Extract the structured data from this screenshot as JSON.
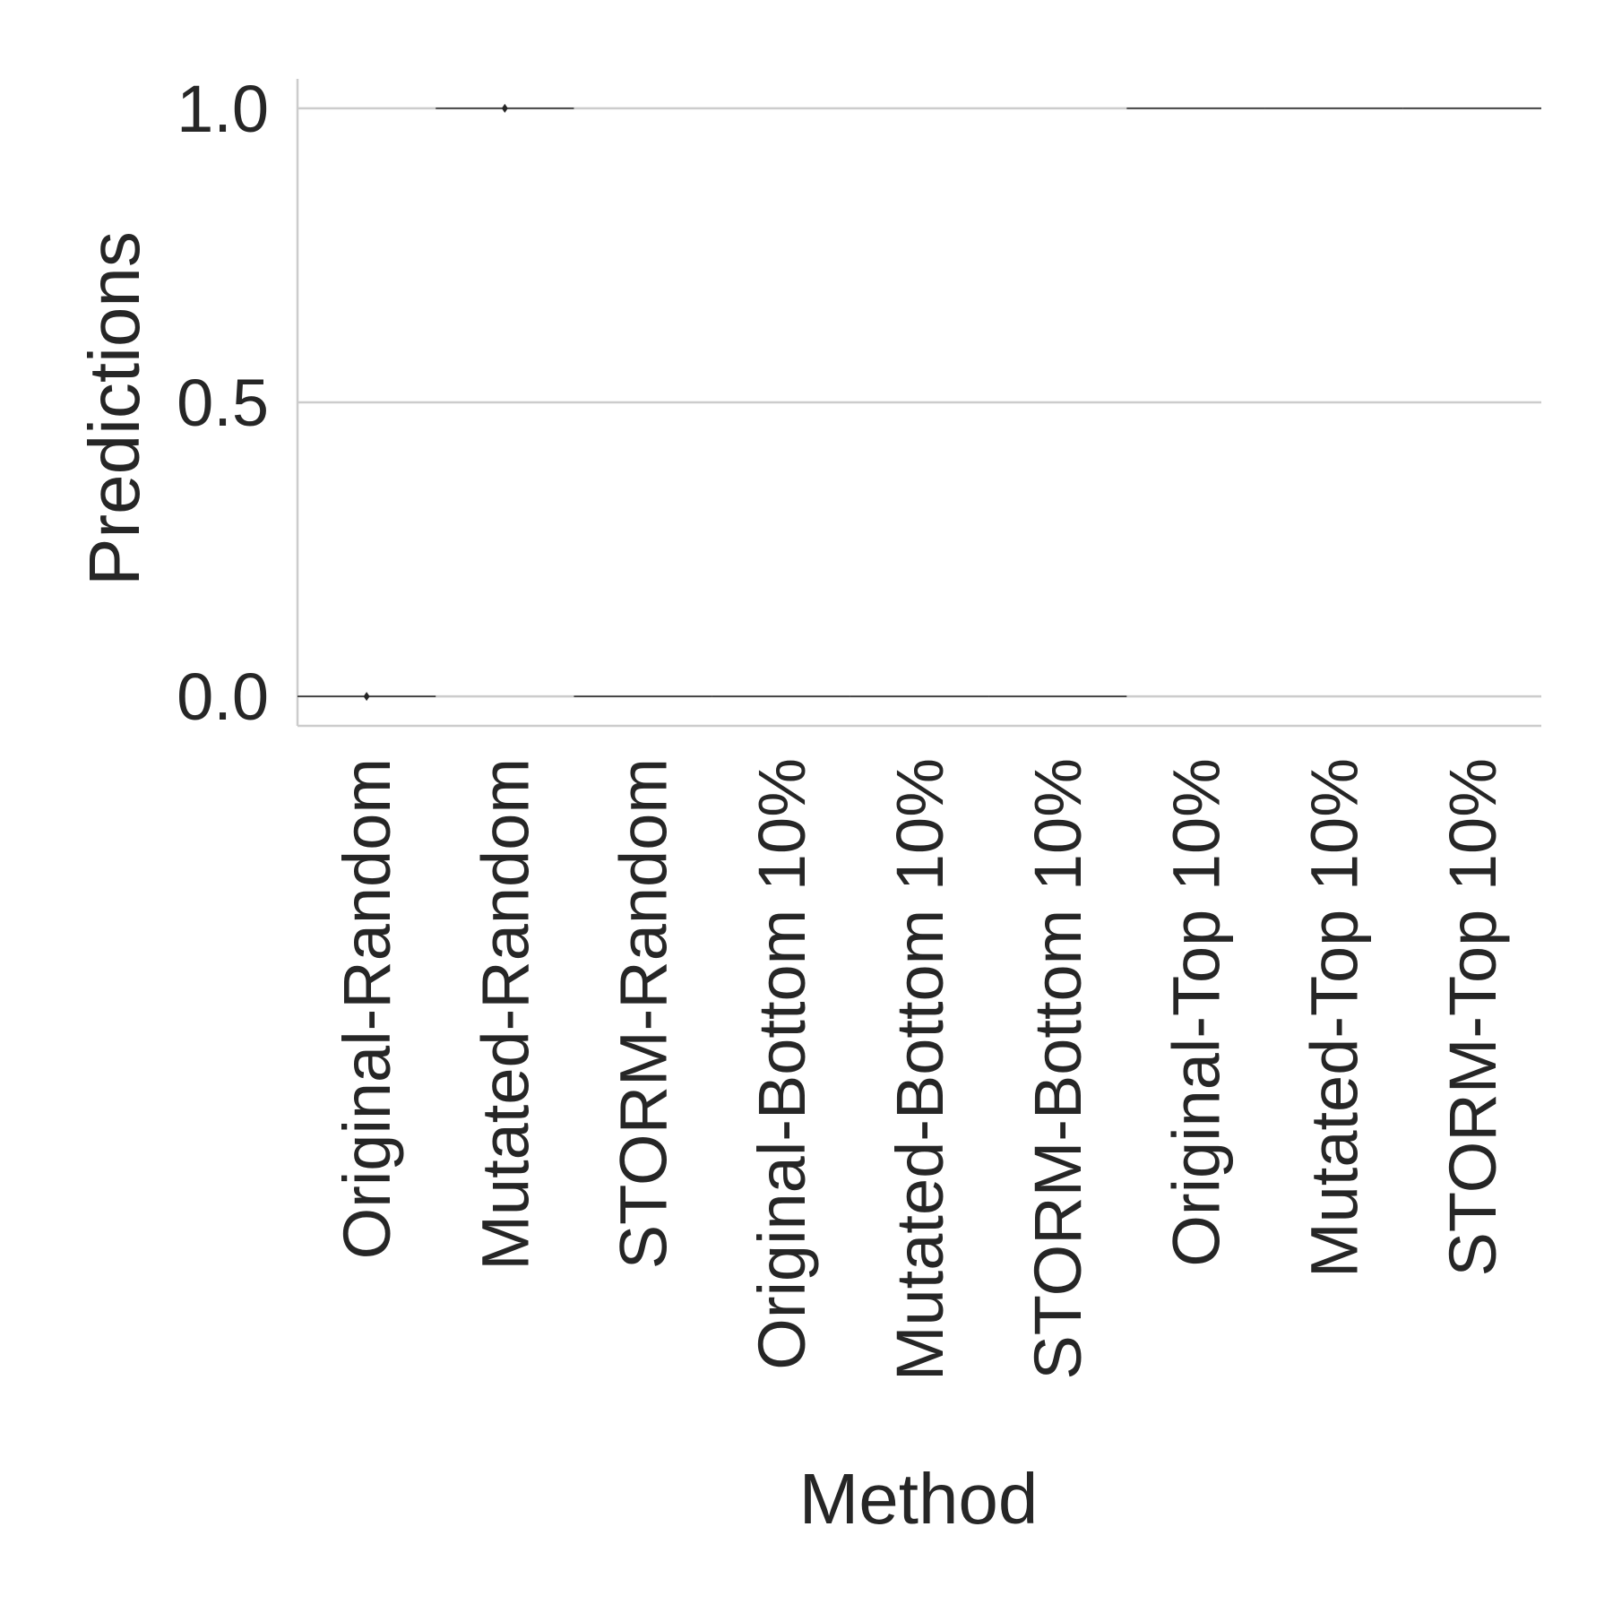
{
  "chart_data": {
    "type": "box",
    "xlabel": "Method",
    "ylabel": "Predictions",
    "ylim": [
      -0.05,
      1.05
    ],
    "yticks": [
      0.0,
      0.5,
      1.0
    ],
    "ytick_labels": [
      "0.0",
      "0.5",
      "1.0"
    ],
    "grid": true,
    "categories": [
      "Original-Random",
      "Mutated-Random",
      "STORM-Random",
      "Original-Bottom 10%",
      "Mutated-Bottom 10%",
      "STORM-Bottom 10%",
      "Original-Top 10%",
      "Mutated-Top 10%",
      "STORM-Top 10%"
    ],
    "values": [
      0,
      1,
      0,
      0,
      0,
      0,
      1,
      1,
      1
    ],
    "outliers": [
      {
        "category": "Original-Random",
        "y": 0
      },
      {
        "category": "Mutated-Random",
        "y": 1
      }
    ],
    "colors": {
      "grid": "#cccccc",
      "text": "#262626",
      "median": "#262626"
    }
  }
}
